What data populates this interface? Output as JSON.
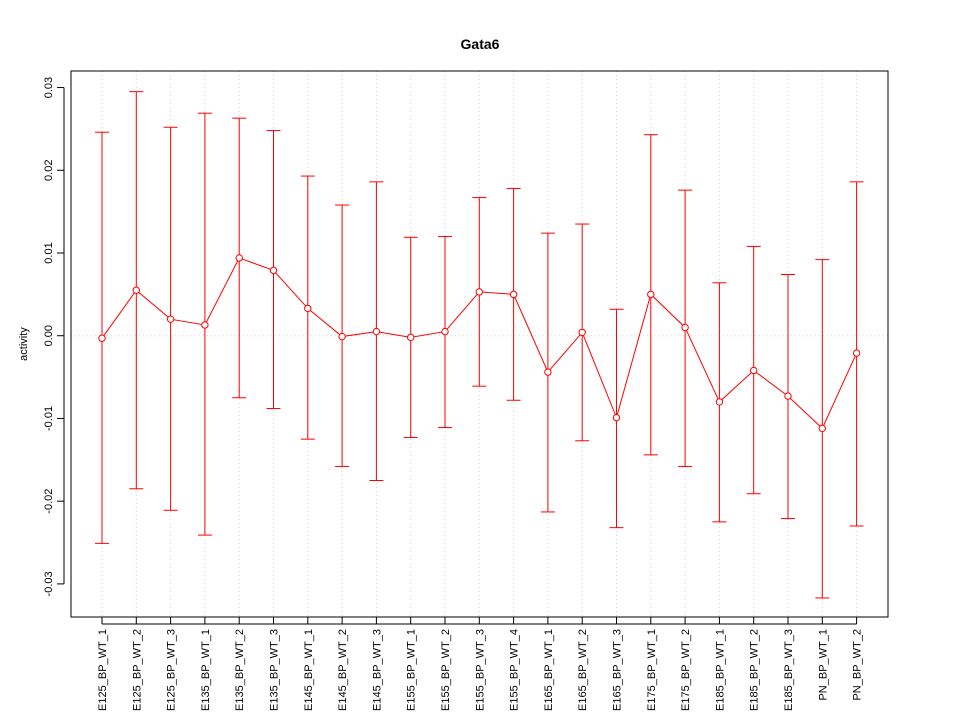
{
  "chart_data": {
    "type": "line",
    "title": "Gata6",
    "xlabel": "",
    "ylabel": "activity",
    "ylim": [
      -0.034,
      0.032
    ],
    "yticks": [
      -0.03,
      -0.02,
      -0.01,
      0.0,
      0.01,
      0.02,
      0.03
    ],
    "ytick_labels": [
      "-0.03",
      "-0.02",
      "-0.01",
      "0.00",
      "0.01",
      "0.02",
      "0.03"
    ],
    "grid": true,
    "color": "#ff0000",
    "categories": [
      "E125_BP_WT_1",
      "E125_BP_WT_2",
      "E125_BP_WT_3",
      "E135_BP_WT_1",
      "E135_BP_WT_2",
      "E135_BP_WT_3",
      "E145_BP_WT_1",
      "E145_BP_WT_2",
      "E145_BP_WT_3",
      "E155_BP_WT_1",
      "E155_BP_WT_2",
      "E155_BP_WT_3",
      "E155_BP_WT_4",
      "E165_BP_WT_1",
      "E165_BP_WT_2",
      "E165_BP_WT_3",
      "E175_BP_WT_1",
      "E175_BP_WT_2",
      "E185_BP_WT_1",
      "E185_BP_WT_2",
      "E185_BP_WT_3",
      "PN_BP_WT_1",
      "PN_BP_WT_2"
    ],
    "values": [
      -0.0003,
      0.0055,
      0.002,
      0.0013,
      0.0094,
      0.0079,
      0.0033,
      -0.0001,
      0.0005,
      -0.0002,
      0.0005,
      0.0053,
      0.005,
      -0.0044,
      0.0004,
      -0.0099,
      0.005,
      0.001,
      -0.008,
      -0.0042,
      -0.0073,
      -0.0112,
      -0.0021
    ],
    "upper": [
      0.0246,
      0.0295,
      0.0252,
      0.0269,
      0.0263,
      0.0248,
      0.0193,
      0.0158,
      0.0186,
      0.0119,
      0.012,
      0.0167,
      0.0178,
      0.0124,
      0.0135,
      0.0032,
      0.0243,
      0.0176,
      0.0064,
      0.0108,
      0.0074,
      0.0092,
      0.0186
    ],
    "lower": [
      -0.0251,
      -0.0185,
      -0.0211,
      -0.0241,
      -0.0075,
      -0.0088,
      -0.0125,
      -0.0158,
      -0.0175,
      -0.0123,
      -0.0111,
      -0.0061,
      -0.0078,
      -0.0213,
      -0.0127,
      -0.0232,
      -0.0144,
      -0.0158,
      -0.0225,
      -0.0191,
      -0.0221,
      -0.0317,
      -0.023
    ]
  }
}
